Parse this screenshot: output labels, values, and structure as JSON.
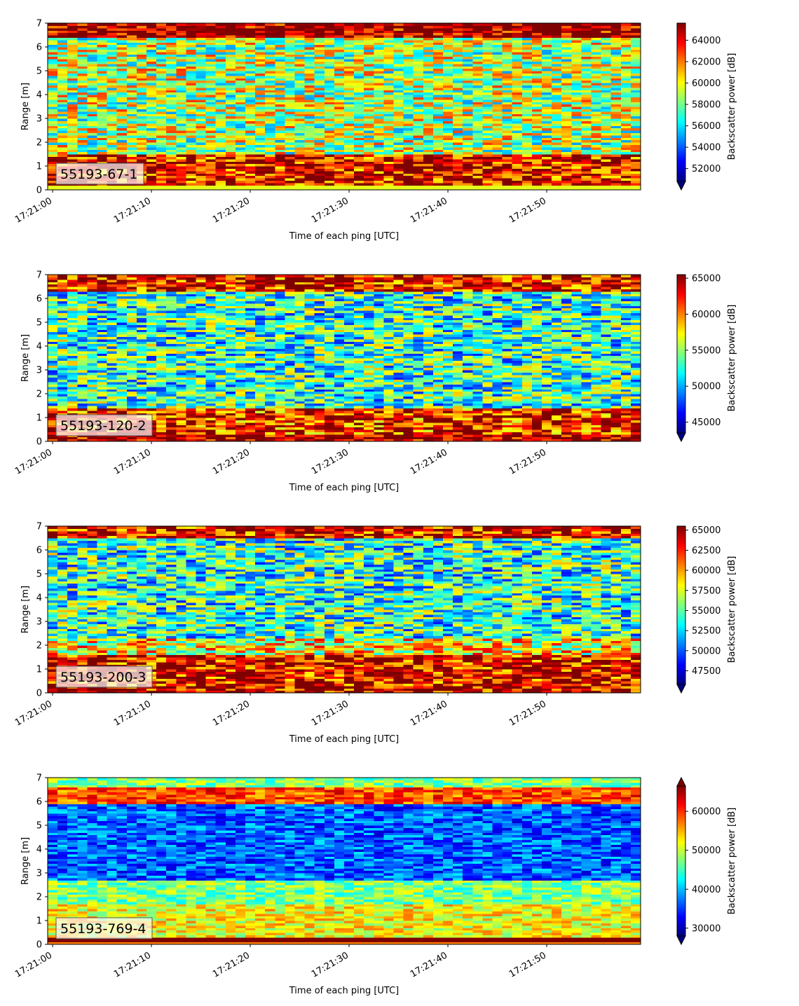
{
  "colormap": {
    "name": "jet",
    "stops": [
      "#00007f",
      "#0000ff",
      "#007fff",
      "#00ffff",
      "#7fff7f",
      "#ffff00",
      "#ff7f00",
      "#ff0000",
      "#7f0000"
    ]
  },
  "chart_data": [
    {
      "type": "heatmap",
      "label": "55193-67-1",
      "xlabel": "Time of each ping [UTC]",
      "ylabel": "Range [m]",
      "x_ticks": [
        "17:21:00",
        "17:21:10",
        "17:21:20",
        "17:21:30",
        "17:21:40",
        "17:21:50"
      ],
      "y_ticks": [
        0,
        1,
        2,
        3,
        4,
        5,
        6,
        7
      ],
      "ylim": [
        0,
        7
      ],
      "time_range_s": [
        -0.5,
        59.5
      ],
      "colorbar": {
        "label": "Backscatter power [dB]",
        "ticks": [
          52000,
          54000,
          56000,
          58000,
          60000,
          62000,
          64000
        ],
        "range": [
          50800,
          65600
        ],
        "extend": "min"
      }
    },
    {
      "type": "heatmap",
      "label": "55193-120-2",
      "xlabel": "Time of each ping [UTC]",
      "ylabel": "Range [m]",
      "x_ticks": [
        "17:21:00",
        "17:21:10",
        "17:21:20",
        "17:21:30",
        "17:21:40",
        "17:21:50"
      ],
      "y_ticks": [
        0,
        1,
        2,
        3,
        4,
        5,
        6,
        7
      ],
      "ylim": [
        0,
        7
      ],
      "time_range_s": [
        -0.5,
        59.5
      ],
      "colorbar": {
        "label": "Backscatter power [dB]",
        "ticks": [
          45000,
          50000,
          55000,
          60000,
          65000
        ],
        "range": [
          43500,
          65500
        ],
        "extend": "min"
      }
    },
    {
      "type": "heatmap",
      "label": "55193-200-3",
      "xlabel": "Time of each ping [UTC]",
      "ylabel": "Range [m]",
      "x_ticks": [
        "17:21:00",
        "17:21:10",
        "17:21:20",
        "17:21:30",
        "17:21:40",
        "17:21:50"
      ],
      "y_ticks": [
        0,
        1,
        2,
        3,
        4,
        5,
        6,
        7
      ],
      "ylim": [
        0,
        7
      ],
      "time_range_s": [
        -0.5,
        59.5
      ],
      "colorbar": {
        "label": "Backscatter power [dB]",
        "ticks": [
          47500,
          50000,
          52500,
          55000,
          57500,
          60000,
          62500,
          65000
        ],
        "range": [
          45800,
          65500
        ],
        "extend": "min"
      }
    },
    {
      "type": "heatmap",
      "label": "55193-769-4",
      "xlabel": "Time of each ping [UTC]",
      "ylabel": "Range [m]",
      "x_ticks": [
        "17:21:00",
        "17:21:10",
        "17:21:20",
        "17:21:30",
        "17:21:40",
        "17:21:50"
      ],
      "y_ticks": [
        0,
        1,
        2,
        3,
        4,
        5,
        6,
        7
      ],
      "ylim": [
        0,
        7
      ],
      "time_range_s": [
        -0.5,
        59.5
      ],
      "colorbar": {
        "label": "Backscatter power [dB]",
        "ticks": [
          30000,
          40000,
          50000,
          60000
        ],
        "range": [
          28000,
          66500
        ],
        "extend": "both"
      }
    }
  ]
}
